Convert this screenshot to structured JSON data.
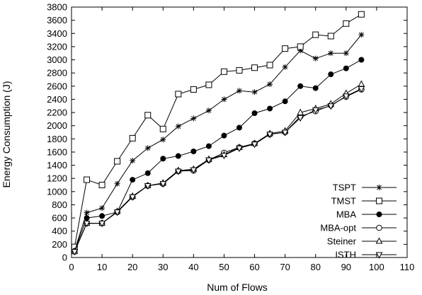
{
  "chart_data": {
    "type": "line",
    "title": "",
    "xlabel": "Num of Flows",
    "ylabel": "Energy Consumption (J)",
    "xlim": [
      0,
      110
    ],
    "ylim": [
      0,
      3800
    ],
    "xticks": [
      0,
      10,
      20,
      30,
      40,
      50,
      60,
      70,
      80,
      90,
      100,
      110
    ],
    "yticks": [
      0,
      200,
      400,
      600,
      800,
      1000,
      1200,
      1400,
      1600,
      1800,
      2000,
      2200,
      2400,
      2600,
      2800,
      3000,
      3200,
      3400,
      3600,
      3800
    ],
    "grid": false,
    "legend_position": "bottom-right",
    "x": [
      1,
      5,
      10,
      15,
      20,
      25,
      30,
      35,
      40,
      45,
      50,
      55,
      60,
      65,
      70,
      75,
      80,
      85,
      90,
      95
    ],
    "series": [
      {
        "name": "TSPT",
        "marker": "asterisk",
        "values": [
          110,
          680,
          750,
          1120,
          1470,
          1660,
          1790,
          1990,
          2110,
          2230,
          2400,
          2530,
          2510,
          2630,
          2890,
          3140,
          3020,
          3100,
          3100,
          3380
        ]
      },
      {
        "name": "TMST",
        "marker": "square",
        "values": [
          160,
          1180,
          1100,
          1460,
          1810,
          2160,
          1950,
          2480,
          2550,
          2620,
          2820,
          2840,
          2880,
          2920,
          3170,
          3200,
          3380,
          3360,
          3550,
          3690
        ]
      },
      {
        "name": "MBA",
        "marker": "filled-circle",
        "values": [
          100,
          600,
          630,
          690,
          1180,
          1280,
          1500,
          1540,
          1610,
          1690,
          1850,
          1970,
          2190,
          2260,
          2370,
          2600,
          2570,
          2780,
          2870,
          3000
        ]
      },
      {
        "name": "MBA-opt",
        "marker": "open-circle",
        "values": [
          90,
          520,
          520,
          690,
          920,
          1090,
          1120,
          1310,
          1320,
          1480,
          1590,
          1670,
          1730,
          1870,
          1900,
          2140,
          2220,
          2310,
          2440,
          2550
        ]
      },
      {
        "name": "Steiner",
        "marker": "triangle-up",
        "values": [
          90,
          520,
          520,
          700,
          930,
          1090,
          1130,
          1320,
          1340,
          1490,
          1560,
          1670,
          1730,
          1880,
          1920,
          2200,
          2260,
          2330,
          2490,
          2630
        ]
      },
      {
        "name": "ISTH",
        "marker": "triangle-down",
        "values": [
          90,
          520,
          520,
          690,
          920,
          1090,
          1120,
          1310,
          1330,
          1480,
          1550,
          1660,
          1720,
          1870,
          1900,
          2120,
          2240,
          2300,
          2450,
          2560
        ]
      }
    ]
  }
}
